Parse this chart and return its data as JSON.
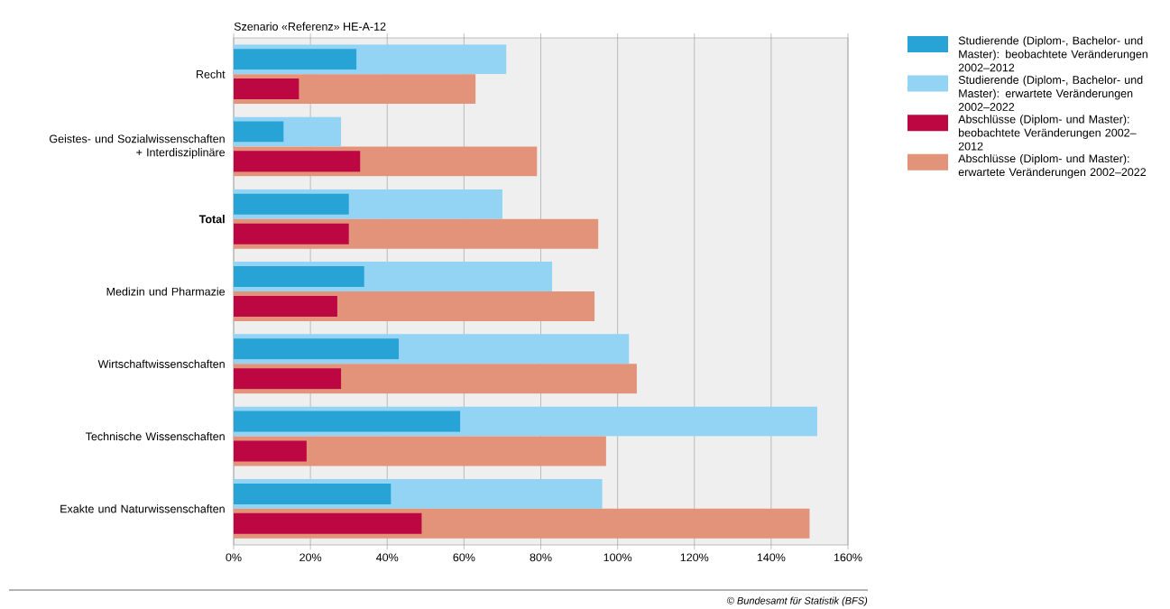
{
  "chart_data": {
    "type": "bar",
    "orientation": "horizontal",
    "title": "Szenario «Referenz» HE-A-12",
    "categories": [
      "Recht",
      "Geistes- und Sozialwissenschaften + Interdisziplinäre",
      "**Total**",
      "Medizin und Pharmazie",
      "Wirtschaftwissenschaften",
      "Technische Wissenschaften",
      "Exakte und Naturwissenschaften"
    ],
    "series": [
      {
        "name": "Studierende (Diplom-, Bachelor- und Master): beobachtete Veränderungen 2002–2012",
        "color": "#27a3d6",
        "values": [
          32,
          13,
          30,
          34,
          43,
          59,
          41
        ]
      },
      {
        "name": "Studierende (Diplom-, Bachelor- und Master): erwartete Veränderungen 2002–2022",
        "color": "#93d4f5",
        "values": [
          71,
          28,
          70,
          83,
          103,
          152,
          96
        ]
      },
      {
        "name": "Abschlüsse (Diplom- und Master): beobachtete Veränderungen 2002–2012",
        "color": "#bd0743",
        "values": [
          17,
          33,
          30,
          27,
          28,
          19,
          49
        ]
      },
      {
        "name": "Abschlüsse (Diplom- und Master): erwartete Veränderungen 2002–2022",
        "color": "#e2937a",
        "values": [
          63,
          79,
          95,
          94,
          105,
          97,
          150
        ]
      }
    ],
    "xlim": [
      0,
      160
    ],
    "xticks": [
      {
        "value": 0,
        "label": "0%"
      },
      {
        "value": 20,
        "label": "20%"
      },
      {
        "value": 40,
        "label": "40%"
      },
      {
        "value": 60,
        "label": "60%"
      },
      {
        "value": 80,
        "label": "80%"
      },
      {
        "value": 100,
        "label": "100%"
      },
      {
        "value": 120,
        "label": "120%"
      },
      {
        "value": 140,
        "label": "140%"
      },
      {
        "value": 160,
        "label": "160%"
      }
    ],
    "grid": "x",
    "legend": "right",
    "annotations": [
      "© Bundesamt für Statistik (BFS)"
    ]
  }
}
